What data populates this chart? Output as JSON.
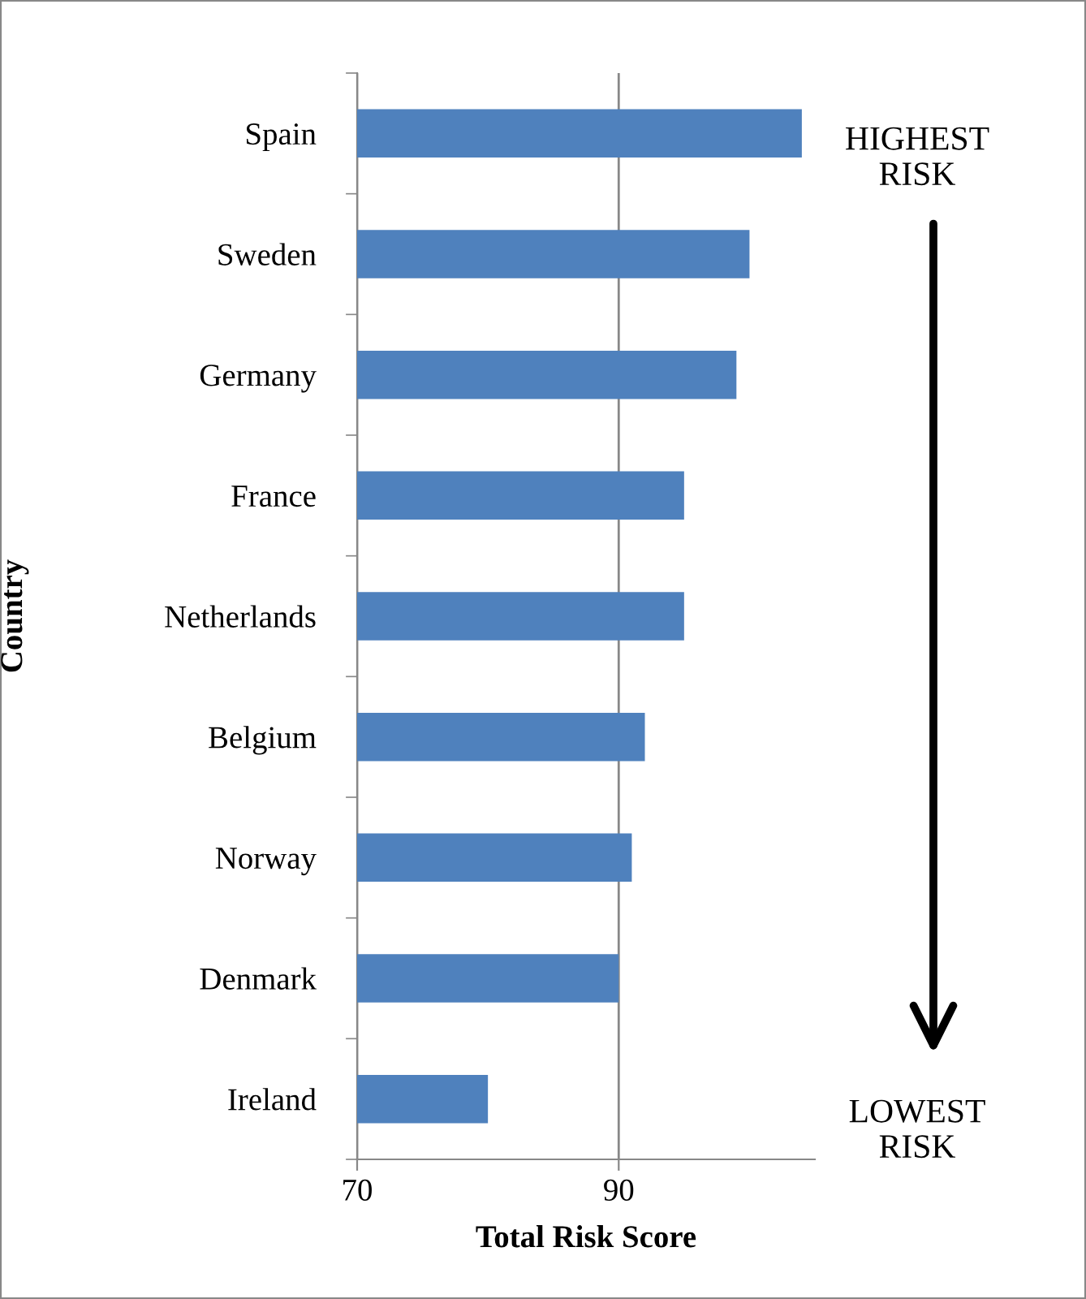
{
  "chart_data": {
    "type": "bar",
    "orientation": "horizontal",
    "xlabel": "Total Risk Score",
    "ylabel": "Country",
    "categories": [
      "Spain",
      "Sweden",
      "Germany",
      "France",
      "Netherlands",
      "Belgium",
      "Norway",
      "Denmark",
      "Ireland"
    ],
    "values": [
      104,
      100,
      99,
      95,
      95,
      92,
      91,
      90,
      80
    ],
    "color": "#4f81bd",
    "xlim": [
      70,
      105
    ],
    "xticks": [
      70,
      90
    ],
    "grid": "x",
    "annotations": [
      "HIGHEST\nRISK",
      "LOWEST\nRISK"
    ]
  }
}
